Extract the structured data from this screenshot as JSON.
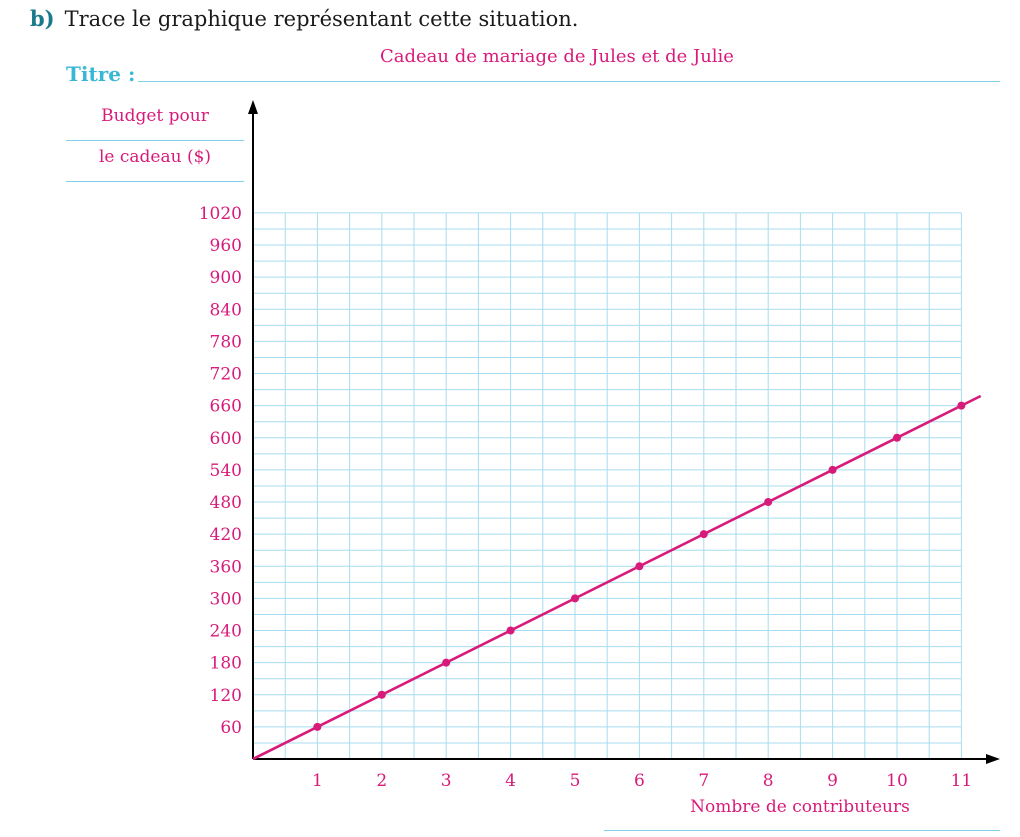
{
  "question": {
    "label": "b)",
    "text": "Trace le graphique représentant cette situation."
  },
  "titre_label": "Titre :",
  "colors": {
    "accent": "#d81b7a",
    "grid": "#a8dcf0",
    "label_teal": "#3bb7d6"
  },
  "chart_data": {
    "type": "line",
    "title": "Cadeau de mariage de Jules et de Julie",
    "xlabel": "Nombre de contributeurs",
    "ylabel_lines": [
      "Budget pour",
      "le cadeau ($)"
    ],
    "x_ticks": [
      1,
      2,
      3,
      4,
      5,
      6,
      7,
      8,
      9,
      10,
      11
    ],
    "y_ticks": [
      60,
      120,
      180,
      240,
      300,
      360,
      420,
      480,
      540,
      600,
      660,
      720,
      780,
      840,
      900,
      960,
      1020
    ],
    "xlim": [
      0,
      11
    ],
    "ylim": [
      0,
      1020
    ],
    "grid": true,
    "series": [
      {
        "x": [
          0,
          1,
          2,
          3,
          4,
          5,
          6,
          7,
          8,
          9,
          10,
          11
        ],
        "y": [
          0,
          60,
          120,
          180,
          240,
          300,
          360,
          420,
          480,
          540,
          600,
          660
        ],
        "extend_to_x": 11.3
      }
    ]
  }
}
